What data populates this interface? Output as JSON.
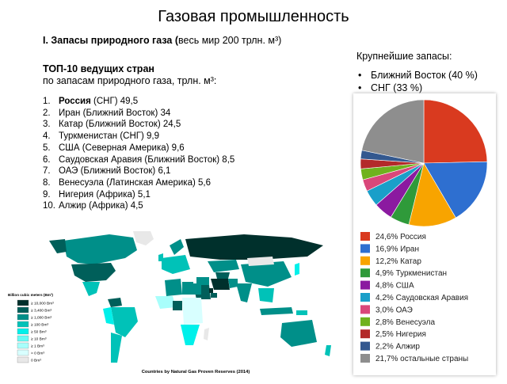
{
  "title": "Газовая промышленность",
  "section": {
    "heading": "I. Запасы природного газа (",
    "note": "весь мир 200 трлн. м³)"
  },
  "top10": {
    "heading": "ТОП-10 ведущих стран",
    "subheading": "по запасам природного газа, трлн. м³:",
    "items": [
      {
        "num": "1.",
        "country": "Россия",
        "rest": " (СНГ) 49,5",
        "bold": true
      },
      {
        "num": "2.",
        "country": "Иран",
        "rest": " (Ближний Восток) 34",
        "bold": false
      },
      {
        "num": "3.",
        "country": "Катар",
        "rest": " (Ближний Восток) 24,5",
        "bold": false
      },
      {
        "num": "4.",
        "country": "Туркменистан",
        "rest": " (СНГ) 9,9",
        "bold": false
      },
      {
        "num": "5.",
        "country": "США",
        "rest": " (Северная Америка) 9,6",
        "bold": false
      },
      {
        "num": "6.",
        "country": "Саудовская Аравия",
        "rest": " (Ближний Восток) 8,5",
        "bold": false
      },
      {
        "num": "7.",
        "country": "ОАЭ",
        "rest": " (Ближний Восток) 6,1",
        "bold": false
      },
      {
        "num": "8.",
        "country": "Венесуэла",
        "rest": " (Латинская Америка) 5,6",
        "bold": false
      },
      {
        "num": "9.",
        "country": "Нигерия",
        "rest": " (Африка) 5,1",
        "bold": false
      },
      {
        "num": "10.",
        "country": "Алжир",
        "rest": " (Африка) 4,5",
        "bold": false
      }
    ]
  },
  "largest": {
    "heading": "Крупнейшие запасы:",
    "items": [
      "Ближний Восток (40 %)",
      "СНГ (33 %)"
    ]
  },
  "chart_data": {
    "type": "pie",
    "slices": [
      {
        "label": "24,6% Россия",
        "value": 24.6,
        "color": "#d93a1f"
      },
      {
        "label": "16,9% Иран",
        "value": 16.9,
        "color": "#2e6fd0"
      },
      {
        "label": "12,2% Катар",
        "value": 12.2,
        "color": "#f8a400"
      },
      {
        "label": "4,9% Туркменистан",
        "value": 4.9,
        "color": "#2f9a3a"
      },
      {
        "label": "4,8% США",
        "value": 4.8,
        "color": "#8b1aa0"
      },
      {
        "label": "4,2% Саудовская Аравия",
        "value": 4.2,
        "color": "#1a9fc9"
      },
      {
        "label": "3,0% ОАЭ",
        "value": 3.0,
        "color": "#d9477a"
      },
      {
        "label": "2,8% Венесуэла",
        "value": 2.8,
        "color": "#6fb21e"
      },
      {
        "label": "2,5% Нигерия",
        "value": 2.5,
        "color": "#b32a2a"
      },
      {
        "label": "2,2% Алжир",
        "value": 2.2,
        "color": "#33588f"
      },
      {
        "label": "21,7% остальные страны",
        "value": 21.7,
        "color": "#8e8e8e"
      }
    ],
    "legend_position": "bottom"
  },
  "map": {
    "caption": "Countries by Natural Gas Proven Reserves (2014)",
    "legend_title": "Billion cubic meters (Bm³)",
    "legend": [
      {
        "label": "≥ 10,000 Bm³",
        "color": "#00302c"
      },
      {
        "label": "≥ 3,400 Bm³",
        "color": "#005f5a"
      },
      {
        "label": "≥ 1,000 Bm³",
        "color": "#008f89"
      },
      {
        "label": "≥ 100 Bm³",
        "color": "#00c2b8"
      },
      {
        "label": "≥ 50 Bm³",
        "color": "#00f0ea"
      },
      {
        "label": "≥ 10 Bm³",
        "color": "#66fbf6"
      },
      {
        "label": "≥ 1 Bm³",
        "color": "#a8fefb"
      },
      {
        "label": "> 0 Bm³",
        "color": "#d8ffff"
      },
      {
        "label": "0 Bm³",
        "color": "#e8e8e8"
      }
    ]
  }
}
